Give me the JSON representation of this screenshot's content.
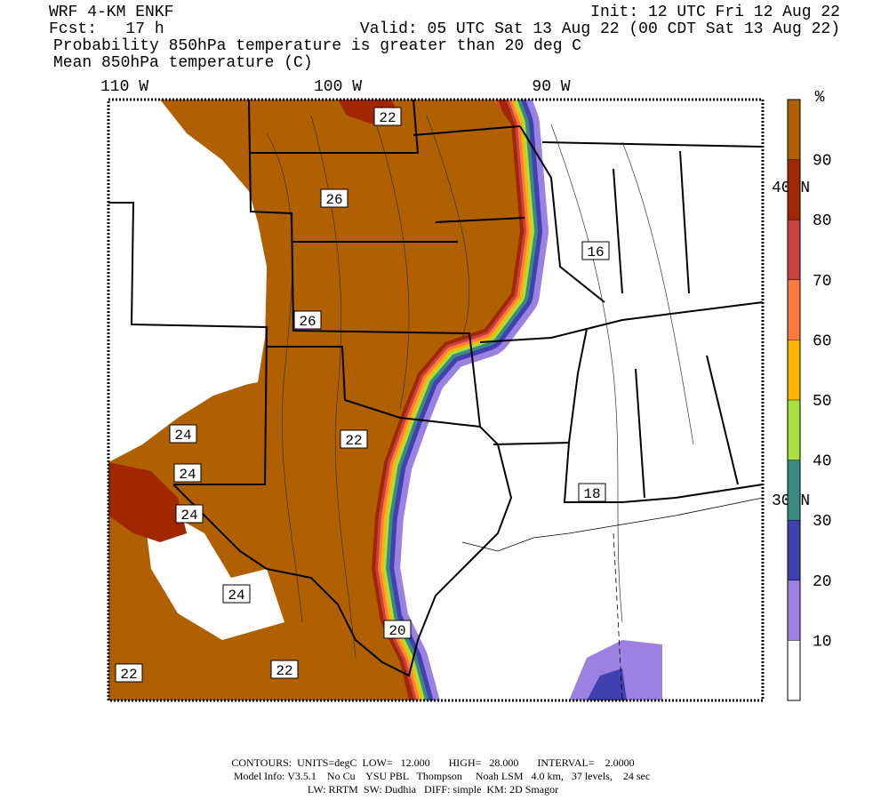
{
  "header": {
    "title": "WRF 4-KM ENKF",
    "forecast": "Fcst:   17 h",
    "init": "Init: 12 UTC Fri 12 Aug 22",
    "valid": "Valid: 05 UTC Sat 13 Aug 22 (00 CDT Sat 13 Aug 22)",
    "field_shaded": "Probability 850hPa temperature is greater than 20 deg C",
    "field_contour": "Mean 850hPa temperature (C)"
  },
  "map": {
    "longitude_labels": [
      "110 W",
      "100 W",
      "90 W"
    ],
    "latitude_labels": [
      "40 N",
      "30 N"
    ],
    "contour_labels": [
      "22",
      "26",
      "26",
      "22",
      "24",
      "24",
      "24",
      "24",
      "20",
      "22",
      "16",
      "18",
      "22"
    ]
  },
  "colorbar": {
    "label": "%",
    "range": [
      0,
      100
    ],
    "ticks": [
      10,
      20,
      30,
      40,
      50,
      60,
      70,
      80,
      90
    ],
    "colors": [
      "#ffffff",
      "#9b82e0",
      "#4040b0",
      "#3a8a80",
      "#a8e040",
      "#ffb400",
      "#ff7a40",
      "#c84040",
      "#a02800",
      "#b06000"
    ]
  },
  "footer": {
    "contours": "CONTOURS:  UNITS=degC  LOW=   12.000       HIGH=   28.000       INTERVAL=    2.0000",
    "model_info": "Model Info: V3.5.1    No Cu    YSU PBL   Thompson     Noah LSM   4.0 km,   37 levels,    24 sec",
    "physics": "LW: RRTM  SW: Dudhia   DIFF: simple  KM: 2D Smagor"
  }
}
